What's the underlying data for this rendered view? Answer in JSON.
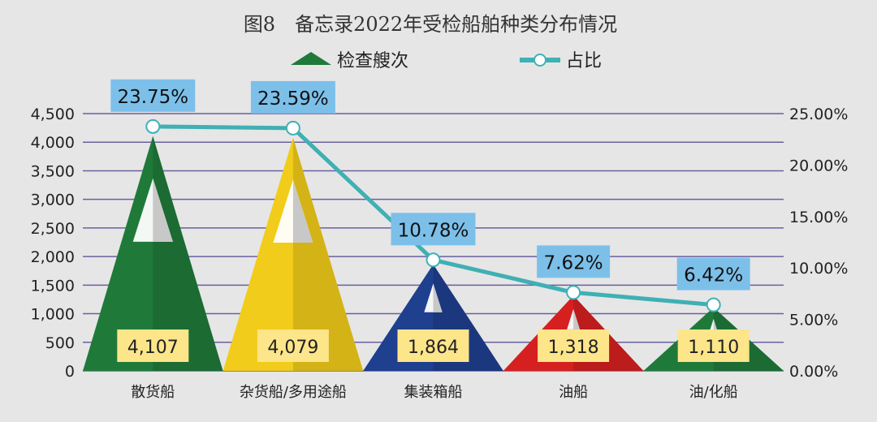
{
  "chart_data": {
    "type": "bar",
    "title": "图8　备忘录2022年受检船舶种类分布情况",
    "categories": [
      "散货船",
      "杂货船/多用途船",
      "集装箱船",
      "油船",
      "油/化船"
    ],
    "series": [
      {
        "name": "检查艘次",
        "type": "bar",
        "axis": "left",
        "values": [
          4107,
          4079,
          1864,
          1318,
          1110
        ],
        "labels": [
          "4,107",
          "4,079",
          "1,864",
          "1,318",
          "1,110"
        ]
      },
      {
        "name": "占比",
        "type": "line",
        "axis": "right",
        "values": [
          23.75,
          23.59,
          10.78,
          7.62,
          6.42
        ],
        "labels": [
          "23.75%",
          "23.59%",
          "10.78%",
          "7.62%",
          "6.42%"
        ]
      }
    ],
    "y_left": {
      "ylim": [
        0,
        4500
      ],
      "ticks": [
        "0",
        "500",
        "1,000",
        "1,500",
        "2,000",
        "2,500",
        "3,000",
        "3,500",
        "4,000",
        "4,500"
      ]
    },
    "y_right": {
      "ylim": [
        0,
        25
      ],
      "ticks": [
        "0.00%",
        "5.00%",
        "10.00%",
        "15.00%",
        "20.00%",
        "25.00%"
      ]
    },
    "grid": true,
    "legend": "top-center",
    "colors": {
      "bars": [
        "#1f7a3a",
        "#f2cc1a",
        "#1f3f8f",
        "#d62020",
        "#1f7a3a"
      ],
      "line": "#3fb0b4",
      "value_label_bg": "#fde58a",
      "pct_label_bg": "#7cc0ea",
      "grid": "#6a5fa0",
      "background": "#e6e6e6"
    }
  }
}
